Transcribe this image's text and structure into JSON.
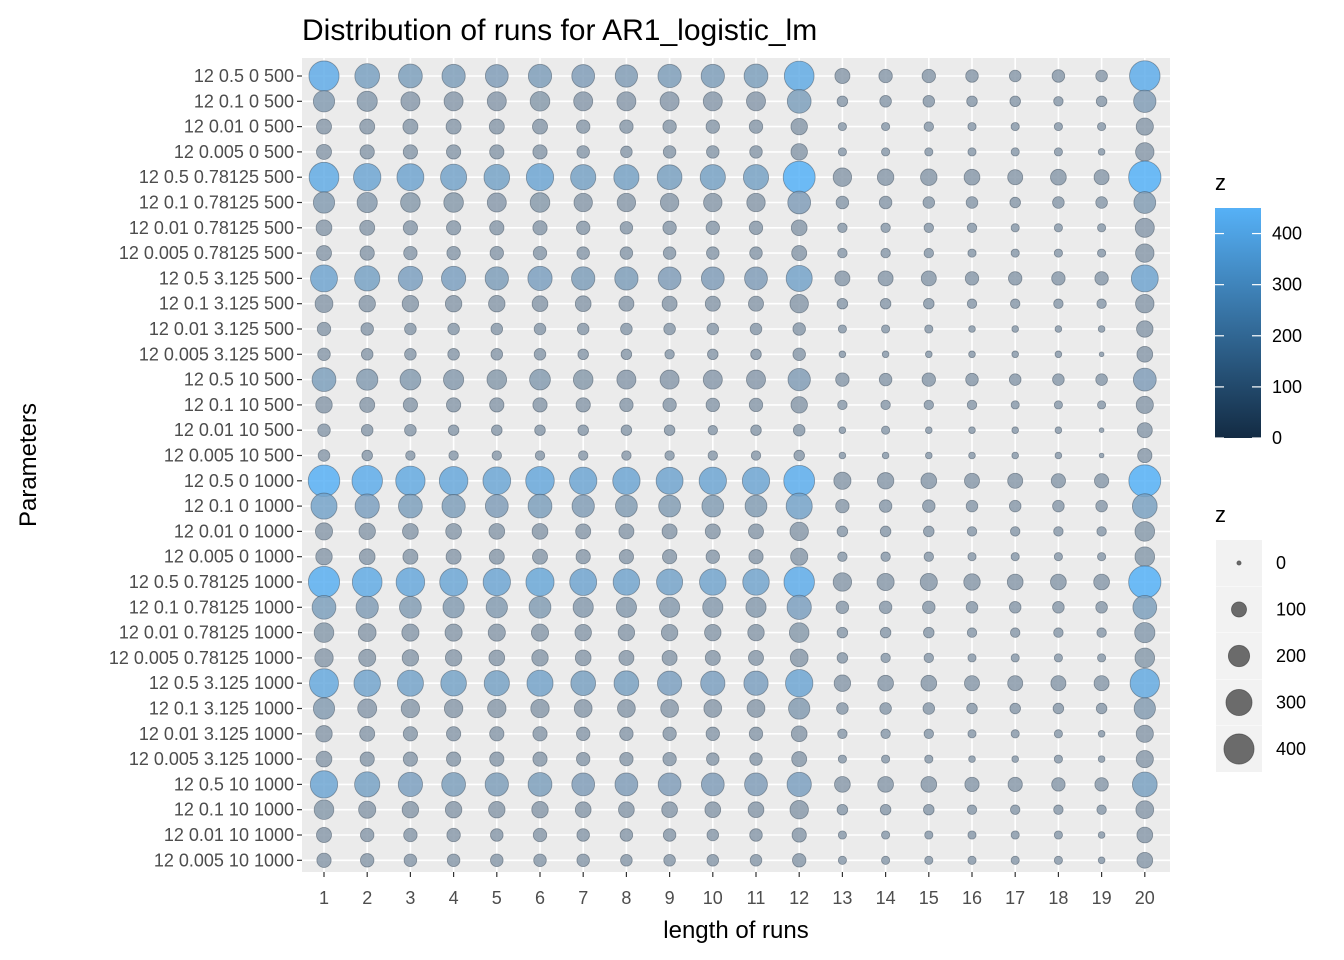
{
  "chart_data": {
    "type": "scatter",
    "title": "Distribution of runs for AR1_logistic_lm",
    "xlabel": "length of runs",
    "ylabel": "Parameters",
    "x": [
      1,
      2,
      3,
      4,
      5,
      6,
      7,
      8,
      9,
      10,
      11,
      12,
      13,
      14,
      15,
      16,
      17,
      18,
      19,
      20
    ],
    "y_categories": [
      "12 0.5 0 500",
      "12 0.1 0 500",
      "12 0.01 0 500",
      "12 0.005 0 500",
      "12 0.5 0.78125 500",
      "12 0.1 0.78125 500",
      "12 0.01 0.78125 500",
      "12 0.005 0.78125 500",
      "12 0.5 3.125 500",
      "12 0.1 3.125 500",
      "12 0.01 3.125 500",
      "12 0.005 3.125 500",
      "12 0.5 10 500",
      "12 0.1 10 500",
      "12 0.01 10 500",
      "12 0.005 10 500",
      "12 0.5 0 1000",
      "12 0.1 0 1000",
      "12 0.01 0 1000",
      "12 0.005 0 1000",
      "12 0.5 0.78125 1000",
      "12 0.1 0.78125 1000",
      "12 0.01 0.78125 1000",
      "12 0.005 0.78125 1000",
      "12 0.5 3.125 1000",
      "12 0.1 3.125 1000",
      "12 0.01 3.125 1000",
      "12 0.005 3.125 1000",
      "12 0.5 10 1000",
      "12 0.1 10 1000",
      "12 0.01 10 1000",
      "12 0.005 10 1000"
    ],
    "z": [
      [
        400,
        270,
        250,
        240,
        230,
        240,
        230,
        220,
        240,
        240,
        250,
        390,
        100,
        80,
        80,
        70,
        60,
        70,
        60,
        410
      ],
      [
        200,
        180,
        160,
        160,
        160,
        170,
        160,
        160,
        160,
        160,
        160,
        250,
        50,
        60,
        60,
        50,
        50,
        40,
        50,
        220
      ],
      [
        100,
        100,
        100,
        100,
        100,
        100,
        80,
        80,
        80,
        80,
        80,
        120,
        30,
        30,
        40,
        30,
        30,
        30,
        30,
        130
      ],
      [
        100,
        90,
        90,
        90,
        90,
        90,
        70,
        60,
        70,
        70,
        70,
        120,
        30,
        30,
        30,
        30,
        30,
        30,
        20,
        150
      ],
      [
        390,
        330,
        320,
        300,
        290,
        330,
        280,
        280,
        270,
        280,
        280,
        450,
        150,
        120,
        120,
        110,
        100,
        110,
        100,
        460
      ],
      [
        200,
        180,
        170,
        170,
        160,
        170,
        150,
        150,
        150,
        150,
        150,
        230,
        70,
        70,
        60,
        60,
        50,
        60,
        60,
        210
      ],
      [
        110,
        100,
        90,
        90,
        90,
        90,
        80,
        70,
        80,
        80,
        80,
        110,
        40,
        40,
        40,
        40,
        30,
        30,
        30,
        160
      ],
      [
        100,
        90,
        80,
        80,
        80,
        80,
        70,
        70,
        70,
        70,
        70,
        100,
        40,
        40,
        40,
        30,
        30,
        30,
        30,
        150
      ],
      [
        320,
        280,
        260,
        260,
        240,
        260,
        240,
        240,
        230,
        230,
        230,
        300,
        100,
        100,
        100,
        80,
        80,
        80,
        80,
        320
      ],
      [
        140,
        120,
        120,
        120,
        120,
        110,
        110,
        100,
        100,
        100,
        100,
        150,
        50,
        50,
        50,
        40,
        40,
        40,
        40,
        150
      ],
      [
        80,
        70,
        60,
        60,
        60,
        60,
        60,
        60,
        60,
        60,
        60,
        70,
        30,
        30,
        30,
        20,
        20,
        20,
        20,
        120
      ],
      [
        70,
        60,
        60,
        60,
        60,
        60,
        50,
        50,
        40,
        50,
        50,
        70,
        20,
        20,
        20,
        20,
        20,
        20,
        10,
        110
      ],
      [
        250,
        200,
        190,
        180,
        170,
        190,
        170,
        160,
        160,
        160,
        160,
        220,
        80,
        70,
        80,
        70,
        60,
        60,
        60,
        230
      ],
      [
        120,
        100,
        90,
        90,
        90,
        90,
        90,
        80,
        80,
        80,
        80,
        120,
        40,
        40,
        40,
        40,
        30,
        30,
        30,
        130
      ],
      [
        70,
        60,
        60,
        50,
        50,
        50,
        50,
        50,
        50,
        40,
        50,
        60,
        20,
        30,
        20,
        20,
        20,
        20,
        10,
        100
      ],
      [
        60,
        50,
        40,
        40,
        40,
        40,
        40,
        40,
        40,
        40,
        40,
        50,
        20,
        20,
        20,
        20,
        20,
        20,
        10,
        90
      ],
      [
        440,
        410,
        380,
        360,
        340,
        360,
        330,
        330,
        320,
        330,
        330,
        420,
        130,
        120,
        110,
        100,
        100,
        90,
        90,
        450
      ],
      [
        300,
        260,
        250,
        240,
        230,
        250,
        220,
        210,
        210,
        210,
        210,
        300,
        80,
        70,
        70,
        60,
        60,
        60,
        60,
        270
      ],
      [
        130,
        120,
        110,
        110,
        110,
        110,
        100,
        100,
        100,
        100,
        100,
        150,
        50,
        50,
        50,
        40,
        40,
        40,
        40,
        170
      ],
      [
        120,
        110,
        100,
        100,
        100,
        100,
        90,
        90,
        90,
        80,
        90,
        130,
        40,
        40,
        40,
        30,
        30,
        30,
        30,
        170
      ],
      [
        430,
        390,
        360,
        340,
        330,
        350,
        320,
        310,
        300,
        310,
        310,
        410,
        150,
        130,
        130,
        120,
        110,
        110,
        110,
        460
      ],
      [
        250,
        220,
        210,
        200,
        200,
        210,
        180,
        180,
        180,
        180,
        180,
        260,
        70,
        70,
        70,
        60,
        60,
        60,
        60,
        250
      ],
      [
        170,
        140,
        130,
        130,
        130,
        130,
        120,
        120,
        120,
        120,
        120,
        170,
        50,
        50,
        50,
        40,
        40,
        40,
        40,
        180
      ],
      [
        150,
        130,
        120,
        120,
        110,
        120,
        110,
        100,
        100,
        100,
        100,
        140,
        50,
        40,
        40,
        30,
        30,
        30,
        30,
        170
      ],
      [
        370,
        310,
        300,
        290,
        280,
        300,
        270,
        270,
        260,
        260,
        260,
        330,
        120,
        110,
        110,
        100,
        100,
        100,
        100,
        380
      ],
      [
        200,
        160,
        150,
        150,
        150,
        150,
        140,
        140,
        140,
        140,
        140,
        200,
        60,
        60,
        60,
        50,
        50,
        50,
        50,
        200
      ],
      [
        120,
        100,
        90,
        90,
        90,
        90,
        80,
        80,
        80,
        80,
        80,
        110,
        40,
        40,
        40,
        30,
        30,
        30,
        20,
        130
      ],
      [
        110,
        90,
        90,
        90,
        90,
        90,
        80,
        80,
        80,
        70,
        70,
        100,
        30,
        30,
        30,
        20,
        20,
        30,
        20,
        130
      ],
      [
        330,
        280,
        260,
        250,
        240,
        250,
        230,
        230,
        230,
        230,
        230,
        260,
        110,
        110,
        110,
        90,
        90,
        80,
        80,
        270
      ],
      [
        170,
        130,
        120,
        120,
        120,
        120,
        110,
        110,
        110,
        110,
        110,
        150,
        50,
        50,
        50,
        40,
        40,
        40,
        40,
        140
      ],
      [
        100,
        80,
        80,
        80,
        70,
        80,
        70,
        70,
        70,
        60,
        70,
        90,
        30,
        30,
        30,
        30,
        30,
        30,
        20,
        110
      ],
      [
        90,
        80,
        70,
        70,
        70,
        70,
        70,
        60,
        60,
        60,
        60,
        80,
        30,
        30,
        30,
        30,
        30,
        30,
        20,
        110
      ]
    ],
    "color_legend": {
      "title": "z",
      "ticks": [
        "0",
        "100",
        "200",
        "300",
        "400"
      ],
      "low": "#132B43",
      "high": "#56B1F7",
      "range": [
        0,
        450
      ]
    },
    "size_legend": {
      "title": "z",
      "values": [
        0,
        100,
        200,
        300,
        400
      ],
      "labels": [
        "0",
        "100",
        "200",
        "300",
        "400"
      ]
    },
    "grid": true,
    "legend_position": "right",
    "point_alpha": 0.6,
    "point_fill": "#8a9aaa"
  }
}
